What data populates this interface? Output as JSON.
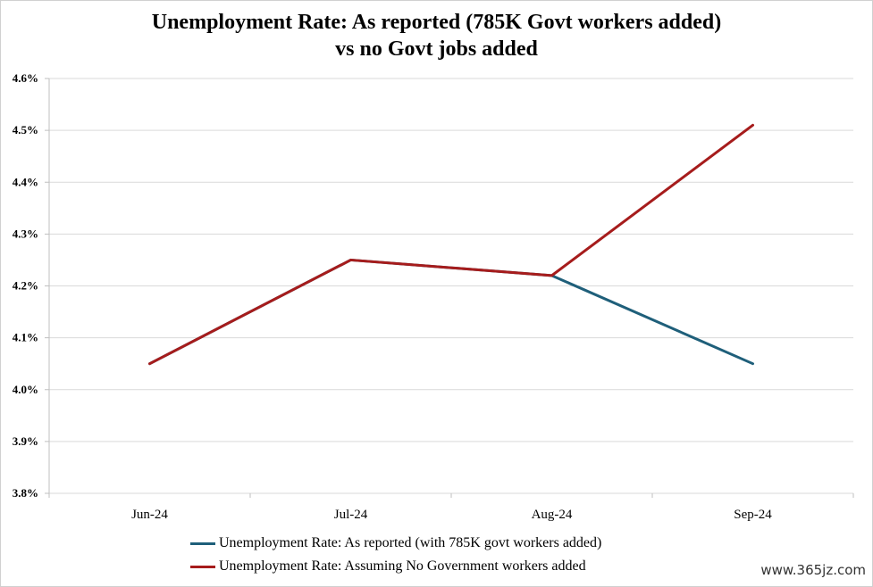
{
  "watermark": "www.365jz.com",
  "chart_data": {
    "type": "line",
    "title": "Unemployment Rate: As reported (785K Govt workers added)",
    "subtitle": "vs no Govt jobs added",
    "xlabel": "",
    "ylabel": "",
    "categories": [
      "Jun-24",
      "Jul-24",
      "Aug-24",
      "Sep-24"
    ],
    "ylim": [
      3.8,
      4.6
    ],
    "yticks": [
      3.8,
      3.9,
      4.0,
      4.1,
      4.2,
      4.3,
      4.4,
      4.5,
      4.6
    ],
    "ytick_labels": [
      "3.8%",
      "3.9%",
      "4.0%",
      "4.1%",
      "4.2%",
      "4.3%",
      "4.4%",
      "4.5%",
      "4.6%"
    ],
    "grid": true,
    "legend_position": "bottom",
    "series": [
      {
        "name": "Unemployment Rate: As reported (with 785K govt workers added)",
        "color": "#1f5f7a",
        "values": [
          4.05,
          4.25,
          4.22,
          4.05
        ]
      },
      {
        "name": "Unemployment Rate: Assuming No Government workers added",
        "color": "#a61c1c",
        "values": [
          4.05,
          4.25,
          4.22,
          4.51
        ]
      }
    ]
  }
}
